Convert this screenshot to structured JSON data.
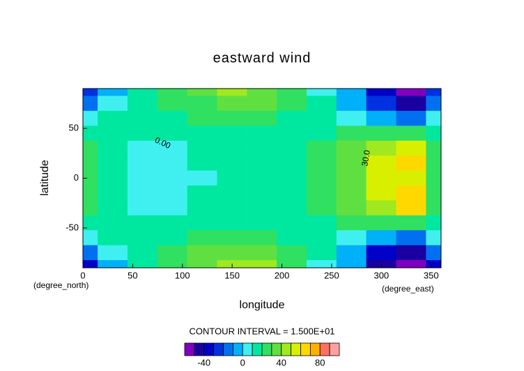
{
  "chart_data": {
    "type": "contour",
    "title": "eastward wind",
    "xlabel": "longitude",
    "ylabel": "latitude",
    "xunit": "(degree_east)",
    "yunit": "(degree_north)",
    "xlim": [
      0,
      360
    ],
    "ylim": [
      -90,
      90
    ],
    "xticks": [
      0,
      50,
      100,
      150,
      200,
      250,
      300,
      350
    ],
    "yticks": [
      -50,
      0,
      50
    ],
    "contour_interval_label": "CONTOUR INTERVAL = 1.500E+01",
    "contour_labels": [
      "0.00",
      "30.0"
    ],
    "lon": [
      0,
      30,
      60,
      90,
      120,
      150,
      180,
      210,
      240,
      270,
      300,
      330,
      360
    ],
    "lat": [
      90,
      75,
      60,
      45,
      30,
      15,
      0,
      -15,
      -30,
      -45,
      -60,
      -75,
      -90
    ],
    "values": [
      [
        -30,
        -10,
        10,
        20,
        30,
        40,
        35,
        20,
        5,
        -10,
        -40,
        -55,
        -30
      ],
      [
        -20,
        0,
        15,
        20,
        28,
        35,
        30,
        20,
        10,
        -5,
        -30,
        -45,
        -20
      ],
      [
        0,
        10,
        15,
        18,
        20,
        22,
        20,
        18,
        15,
        5,
        -10,
        -20,
        0
      ],
      [
        15,
        15,
        12,
        15,
        18,
        15,
        15,
        15,
        18,
        20,
        25,
        25,
        15
      ],
      [
        20,
        15,
        5,
        5,
        15,
        18,
        17,
        18,
        20,
        30,
        45,
        55,
        20
      ],
      [
        22,
        12,
        3,
        3,
        10,
        17,
        17,
        16,
        20,
        35,
        50,
        60,
        22
      ],
      [
        25,
        12,
        3,
        3,
        8,
        16,
        17,
        16,
        22,
        35,
        50,
        55,
        25
      ],
      [
        22,
        12,
        3,
        3,
        10,
        17,
        17,
        16,
        20,
        35,
        50,
        60,
        22
      ],
      [
        20,
        15,
        5,
        5,
        15,
        18,
        17,
        18,
        20,
        30,
        45,
        62,
        20
      ],
      [
        15,
        15,
        12,
        15,
        18,
        15,
        15,
        15,
        18,
        20,
        25,
        25,
        15
      ],
      [
        0,
        10,
        15,
        18,
        20,
        22,
        20,
        18,
        15,
        5,
        -10,
        -20,
        0
      ],
      [
        -20,
        0,
        15,
        22,
        30,
        37,
        32,
        20,
        10,
        -5,
        -35,
        -50,
        -20
      ],
      [
        -35,
        -10,
        10,
        20,
        30,
        45,
        40,
        20,
        5,
        -10,
        -45,
        -60,
        -35
      ]
    ],
    "colorbar": {
      "lim": [
        -60,
        100
      ],
      "ticks": [
        -40,
        0,
        40,
        80
      ],
      "colors": [
        "#8000c0",
        "#1a00a0",
        "#0000c8",
        "#0030e0",
        "#0070f0",
        "#00b0f8",
        "#40f0f0",
        "#00e8a0",
        "#30e060",
        "#60e040",
        "#a0e820",
        "#d8f000",
        "#ffd800",
        "#ffb000",
        "#ff7060",
        "#ffa0a0"
      ]
    }
  }
}
